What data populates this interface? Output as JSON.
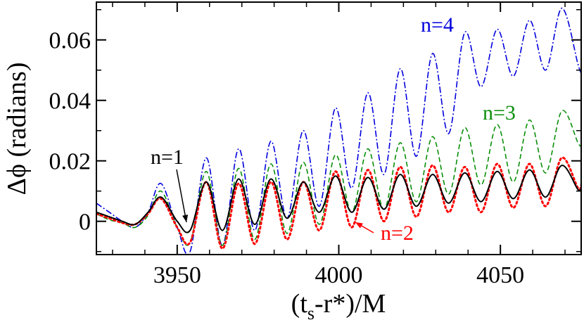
{
  "chart_data": {
    "type": "line",
    "title": "",
    "xlabel": {
      "main": "(t",
      "sub": "s",
      "tail": "-r*)/M"
    },
    "ylabel": "Δϕ (radians)",
    "xlim": [
      3925,
      4075
    ],
    "ylim": [
      -0.011,
      0.0725
    ],
    "xticks": [
      3950,
      4000,
      4050
    ],
    "xtick_labels": [
      "3950",
      "4000",
      "4050"
    ],
    "yticks": [
      0,
      0.02,
      0.04,
      0.06
    ],
    "ytick_labels": [
      "0",
      "0.02",
      "0.04",
      "0.06"
    ],
    "grid": false,
    "legend": "none (series labeled by inline annotations)",
    "series": [
      {
        "name": "n=1",
        "color": "#000000",
        "dash": "solid",
        "x": [
          3925,
          3929,
          3933,
          3937,
          3941,
          3945,
          3950,
          3954,
          3959,
          3964,
          3969,
          3974,
          3979,
          3984,
          3989,
          3994,
          3999,
          4004,
          4009,
          4014,
          4019,
          4024,
          4029,
          4034,
          4039,
          4044,
          4049,
          4054,
          4059,
          4064,
          4069,
          4074,
          4075
        ],
        "y": [
          0.003,
          0.0015,
          0.0,
          -0.001,
          0.003,
          0.008,
          0.0,
          -0.003,
          0.013,
          -0.003,
          0.014,
          -0.001,
          0.014,
          0.001,
          0.013,
          0.003,
          0.015,
          0.003,
          0.0145,
          0.004,
          0.0155,
          0.005,
          0.0155,
          0.006,
          0.016,
          0.0065,
          0.0165,
          0.0075,
          0.017,
          0.008,
          0.0185,
          0.0105,
          0.011
        ]
      },
      {
        "name": "n=2",
        "color": "#ff0000",
        "dash": "dotted",
        "x": [
          3925,
          3929,
          3933,
          3937,
          3941,
          3945,
          3950,
          3954,
          3959,
          3964,
          3969,
          3974,
          3979,
          3984,
          3989,
          3994,
          3999,
          4004,
          4009,
          4014,
          4019,
          4024,
          4029,
          4034,
          4039,
          4044,
          4049,
          4054,
          4059,
          4064,
          4069,
          4074,
          4075
        ],
        "y": [
          0.0025,
          0.001,
          -0.0005,
          -0.001,
          0.0025,
          0.0075,
          -0.002,
          -0.007,
          0.013,
          -0.009,
          0.0125,
          -0.0075,
          0.013,
          -0.006,
          0.013,
          -0.003,
          0.0165,
          -0.002,
          0.017,
          0.0,
          0.018,
          0.0015,
          0.0185,
          0.003,
          0.018,
          0.003,
          0.019,
          0.0045,
          0.019,
          0.005,
          0.021,
          0.011,
          0.012
        ]
      },
      {
        "name": "n=3",
        "color": "#0a8f0a",
        "dash": "dashed",
        "x": [
          3925,
          3929,
          3933,
          3937,
          3941,
          3945,
          3950,
          3954,
          3959,
          3964,
          3969,
          3974,
          3979,
          3984,
          3989,
          3994,
          3999,
          4004,
          4009,
          4014,
          4019,
          4024,
          4029,
          4034,
          4039,
          4044,
          4049,
          4054,
          4059,
          4064,
          4069,
          4074,
          4075
        ],
        "y": [
          0.0025,
          0.0005,
          -0.0005,
          -0.002,
          0.002,
          0.01,
          -0.002,
          -0.007,
          0.0165,
          -0.008,
          0.0175,
          -0.006,
          0.019,
          -0.004,
          0.0195,
          -0.001,
          0.022,
          0.003,
          0.024,
          0.004,
          0.026,
          0.0065,
          0.028,
          0.009,
          0.031,
          0.012,
          0.032,
          0.013,
          0.0335,
          0.016,
          0.0365,
          0.026,
          0.025
        ]
      },
      {
        "name": "n=4",
        "color": "#0000dd",
        "dash": "dashdot",
        "x": [
          3925,
          3929,
          3933,
          3937,
          3941,
          3945,
          3950,
          3954,
          3959,
          3964,
          3969,
          3974,
          3979,
          3984,
          3989,
          3994,
          3999,
          4004,
          4009,
          4014,
          4019,
          4024,
          4029,
          4034,
          4039,
          4044,
          4049,
          4054,
          4059,
          4064,
          4069,
          4074,
          4075
        ],
        "y": [
          0.006,
          0.003,
          0.0,
          -0.002,
          0.003,
          0.0125,
          -0.002,
          -0.01,
          0.021,
          -0.008,
          0.024,
          -0.003,
          0.0265,
          0.001,
          0.03,
          0.005,
          0.0375,
          0.011,
          0.0425,
          0.0155,
          0.0505,
          0.0215,
          0.0555,
          0.029,
          0.0625,
          0.0445,
          0.0635,
          0.048,
          0.0665,
          0.05,
          0.0705,
          0.052,
          0.049
        ]
      }
    ],
    "annotations": [
      {
        "text": "n=1",
        "color": "#000000"
      },
      {
        "text": "n=2",
        "color": "#ff0000"
      },
      {
        "text": "n=3",
        "color": "#0a8f0a"
      },
      {
        "text": "n=4",
        "color": "#0000dd"
      }
    ]
  }
}
